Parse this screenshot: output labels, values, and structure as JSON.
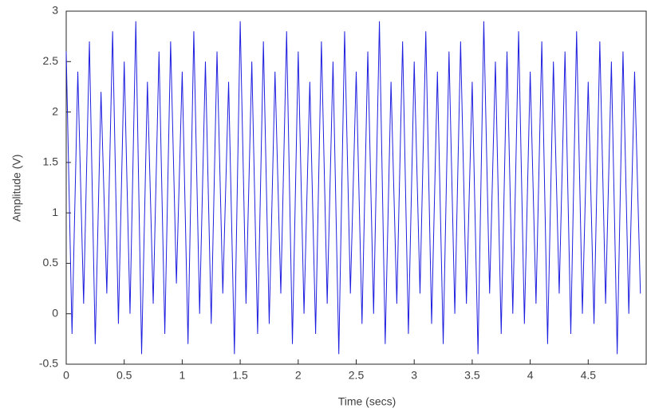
{
  "chart_data": {
    "type": "line",
    "xlabel": "Time (secs)",
    "ylabel": "Amplitude (V)",
    "xlim": [
      0,
      5
    ],
    "ylim": [
      -0.5,
      3
    ],
    "xticks": [
      0,
      0.5,
      1,
      1.5,
      2,
      2.5,
      3,
      3.5,
      4,
      4.5
    ],
    "yticks": [
      -0.5,
      0,
      0.5,
      1,
      1.5,
      2,
      2.5,
      3
    ],
    "grid": false,
    "series": [
      {
        "color": "#1f1fe0",
        "x": [
          0,
          0.05,
          0.1,
          0.15,
          0.2,
          0.25,
          0.3,
          0.35,
          0.4,
          0.45,
          0.5,
          0.55,
          0.6,
          0.65,
          0.7,
          0.75,
          0.8,
          0.85,
          0.9,
          0.95,
          1,
          1.05,
          1.1,
          1.15,
          1.2,
          1.25,
          1.3,
          1.35,
          1.4,
          1.45,
          1.5,
          1.55,
          1.6,
          1.65,
          1.7,
          1.75,
          1.8,
          1.85,
          1.9,
          1.95,
          2,
          2.05,
          2.1,
          2.15,
          2.2,
          2.25,
          2.3,
          2.35,
          2.4,
          2.45,
          2.5,
          2.55,
          2.6,
          2.65,
          2.7,
          2.75,
          2.8,
          2.85,
          2.9,
          2.95,
          3,
          3.05,
          3.1,
          3.15,
          3.2,
          3.25,
          3.3,
          3.35,
          3.4,
          3.45,
          3.5,
          3.55,
          3.6,
          3.65,
          3.7,
          3.75,
          3.8,
          3.85,
          3.9,
          3.95,
          4,
          4.05,
          4.1,
          4.15,
          4.2,
          4.25,
          4.3,
          4.35,
          4.4,
          4.45,
          4.5,
          4.55,
          4.6,
          4.65,
          4.7,
          4.75,
          4.8,
          4.85,
          4.9,
          4.95
        ],
        "values": [
          2.6,
          -0.2,
          2.4,
          0.1,
          2.7,
          -0.3,
          2.2,
          0.2,
          2.8,
          -0.1,
          2.5,
          0.0,
          2.9,
          -0.4,
          2.3,
          0.1,
          2.6,
          -0.2,
          2.7,
          0.3,
          2.4,
          -0.3,
          2.8,
          0.0,
          2.5,
          -0.1,
          2.6,
          0.2,
          2.3,
          -0.4,
          2.9,
          0.1,
          2.5,
          -0.2,
          2.7,
          -0.1,
          2.4,
          0.2,
          2.8,
          -0.3,
          2.6,
          0.0,
          2.3,
          -0.2,
          2.7,
          0.1,
          2.5,
          -0.4,
          2.8,
          0.2,
          2.4,
          -0.1,
          2.6,
          0.0,
          2.9,
          -0.3,
          2.3,
          0.1,
          2.7,
          -0.2,
          2.5,
          0.2,
          2.8,
          -0.1,
          2.4,
          -0.3,
          2.6,
          0.0,
          2.7,
          0.1,
          2.3,
          -0.4,
          2.9,
          0.2,
          2.5,
          -0.2,
          2.6,
          0.0,
          2.8,
          -0.1,
          2.4,
          0.1,
          2.7,
          -0.3,
          2.5,
          0.2,
          2.6,
          -0.2,
          2.8,
          0.0,
          2.3,
          -0.1,
          2.7,
          0.1,
          2.5,
          -0.4,
          2.6,
          0.0,
          2.4,
          0.2
        ]
      }
    ]
  }
}
